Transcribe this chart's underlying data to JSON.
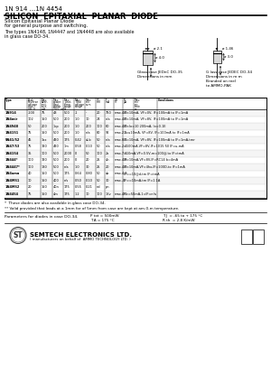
{
  "title_line1": "1N 914 ...1N 4454",
  "title_line2": "SILICON  EPITAXIAL  PLANAR  DIODE",
  "bg_color": "#ffffff",
  "desc_line1": "Silicon Epitaxial Planar Diode",
  "desc_line2": "for general purpose and switching.",
  "desc_line3": "The types 1N4148, 1N4447 and 1N4448 are also available",
  "desc_line4": "in glass case DO-34.",
  "pkg_label1": "Glass case JEDnC DO-35",
  "pkg_label2": "G lass case JEDEC DO-34",
  "dim_label1": "Dimensions in mm",
  "dim_label2": "Dimensions in m m",
  "dim_label3": "Branded on reel",
  "dim_label4": "to AMMO-PAK",
  "col_headers": [
    "Type",
    "Peak\nReverse\nvoltage\nmax.\nV R  V",
    "Max.\nAver-\nrectified\ncurrent\nmA",
    "Max.\npower of\ndissi-\npation\nat 70 °C\nmW",
    "Max.\nJunction\ntempe-\nrature\nrange",
    "Max.\nTo-Total ©\nvoltage\nrange",
    "Max.\nreverse\ncurrent\nnumber",
    "V F  mV",
    "I F  mA",
    "V R  V",
    "I R  μA",
    "Max. reverse recovery time\nμs",
    "Conditions"
  ],
  "table_rows": [
    [
      "1N914",
      "-100",
      "75",
      "43mA",
      "500",
      "-1",
      "- ",
      "20",
      "750",
      "max. 4.0",
      "I F = 10mA, V F = 0V, IF = 100 mA, to I F = 1mA"
    ],
    [
      "1N4mir",
      "102",
      "150",
      "500",
      "200",
      "1.0",
      "10",
      "24",
      "n/a",
      "max. 4.0",
      "I F = 10mA, V F = 8V, IF = 100 mA, to I F = 1mA"
    ],
    [
      "1N4948",
      "50",
      "200",
      "1 kpf",
      "200",
      "1.0",
      "200",
      "100",
      "60",
      "max. 4.0",
      "I F = I o = 10 200 mA, I o = 0.1 E"
    ],
    [
      "1N4151",
      "75",
      "150",
      "500",
      "200",
      "1.0",
      "n/a",
      "80",
      "92",
      "4 max. 2.5",
      "1 = u 10mA, V F = 8V, IF = 100 mA, to I F = 1 mA"
    ],
    [
      "5N41/52",
      "45",
      "1xx",
      "490",
      "175",
      "0.42",
      "al.-b",
      "50",
      "n/a",
      "max. 8.1",
      "I F = 10mA, V F = 8V, IF = 100 mA, to I F = 1 mA, tmr"
    ],
    [
      "1N47/53",
      "75",
      "190",
      "490",
      "1 m",
      "0.58",
      "0.10",
      "50",
      "n/a",
      "max. 2.0",
      "= 100mA, V F = 8V, IF = 10 15 50 I F = u-mA"
    ],
    [
      "1N4154",
      "35",
      "100.1",
      "500",
      "2000",
      "-1",
      "50",
      "100",
      "2x",
      "max. 7.5",
      "= 10mA, V F = 0.5V, m = 100@; to I F = tmA"
    ],
    [
      "1N444ir*",
      "100",
      "190",
      "500",
      "200",
      "0",
      "20",
      "25",
      "4n",
      "max. 4.8",
      "I F = 10 mA, V F = 8V, IF = RC 14 b = 4mA"
    ],
    [
      "1N4447*",
      "100",
      "130",
      "500",
      "n/a",
      "1.0",
      "30",
      "25",
      "20",
      "max. 4.0",
      "I F = 10mA, V F = 4hx, IF = 100 D, to I F = 1mA"
    ],
    [
      "1N4uma",
      "40",
      "150",
      "500",
      "175",
      "0.64",
      "0.80",
      "50",
      "ab",
      "max. 4.9",
      "I F = = 10 @ d, tm I F = tm A"
    ],
    [
      "1N4/M51",
      "10",
      "150",
      "400",
      "n/s",
      "0.50",
      "0.10",
      "50",
      "30",
      "max. -0",
      "I F = = 10 mA, tm I F = 1.1 A"
    ],
    [
      "1N4/M52",
      "20",
      "150",
      "40n",
      "175",
      "0.55",
      "0.21",
      "nd",
      "pn",
      "",
      ""
    ],
    [
      "1N4454",
      "75",
      "150",
      "4m",
      "175",
      "1.2",
      "10",
      "100",
      "1Kv",
      "max. 4.0",
      "I F = = 50 mA, 1= I F = n/a"
    ]
  ],
  "note1": "*  These diodes are also available in glass case DO-34.",
  "note2": "** Valid provided that leads at a 1mm for of 5mm from case are kept at am-0-m temperature.",
  "param_label": "Parameters for diodes in case DO-34.",
  "param1": "P tot = 500mW",
  "param2": "T J  = -65 to + 175 °C",
  "param3": "T A = 175 °C",
  "param4": "R th  = 2.8 K/mW",
  "company": "SEMTECH ELECTRONICS LTD.",
  "company_sub": "( manufacturers on behalf of  AMMO TECHNOLOGY LTD. )"
}
